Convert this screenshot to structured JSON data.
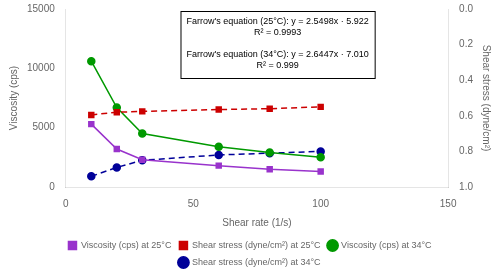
{
  "chart_data": {
    "type": "line",
    "x": [
      10,
      20,
      30,
      60,
      80,
      100
    ],
    "xlabel": "Shear rate (1/s)",
    "ylabel": "Viscosity (cps)",
    "y2label": "Shear stress (dyne/cm²)",
    "xlim": [
      0,
      150
    ],
    "xticks": [
      0,
      50,
      100,
      150
    ],
    "ylim": [
      0,
      15000
    ],
    "yticks": [
      0,
      5000,
      10000,
      15000
    ],
    "y2lim": [
      1.0,
      0.0
    ],
    "y2ticks": [
      {
        "value": 0,
        "label": "0.0"
      },
      0.2,
      0.4,
      0.6,
      0.8,
      {
        "value": 1,
        "label": "1.0"
      }
    ],
    "grid": false,
    "legend": "bottom",
    "annotation": [
      [
        "Farrow's equation (25°C): y = 2.5498x · 5.922",
        "R² = 0.9993"
      ],
      [
        "Farrow's equation (34°C): y = 2.6447x · 7.010",
        "R² = 0.999"
      ]
    ],
    "series": [
      {
        "name": "Viscosity (cps) at 25°C",
        "color": "#9933cc",
        "marker": "square",
        "line_style": "solid",
        "values": [
          5300,
          3200,
          2300,
          1800,
          1500,
          1300
        ]
      },
      {
        "name": "Shear stress (dyne/cm²) at 25°C",
        "color": "#cc0000",
        "marker": "square",
        "line_style": "dashed",
        "axis": "y2",
        "values": [
          0.595,
          0.58,
          0.575,
          0.565,
          0.56,
          0.55
        ]
      },
      {
        "name": "Viscosity (cps) at 34°C",
        "color": "#009900",
        "marker": "circle",
        "line_style": "solid",
        "values": [
          10600,
          6700,
          4500,
          3400,
          2900,
          2500
        ]
      },
      {
        "name": "Shear stress (dyne/cm²) at 34°C",
        "color": "#000099",
        "marker": "circle",
        "line_style": "dashed",
        "axis": "y2",
        "values": [
          0.94,
          0.89,
          0.85,
          0.82,
          0.81,
          0.8
        ]
      }
    ]
  }
}
